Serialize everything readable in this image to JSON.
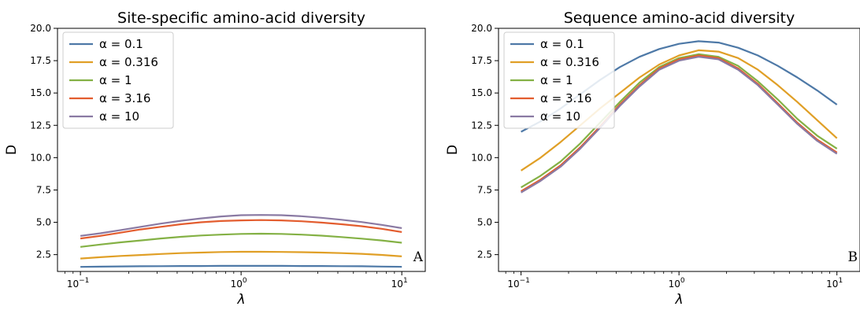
{
  "chart_data": [
    {
      "type": "line",
      "title": "Site-specific amino-acid diversity",
      "xlabel": "λ",
      "ylabel": "D",
      "xscale": "log",
      "xlim": [
        0.072,
        14
      ],
      "ylim": [
        1.2,
        20.0
      ],
      "x_ticks": [
        0.1,
        1,
        10
      ],
      "x_tick_labels": [
        {
          "base": "10",
          "exp": "−1"
        },
        {
          "base": "10",
          "exp": "0"
        },
        {
          "base": "10",
          "exp": "1"
        }
      ],
      "y_ticks": [
        "2.5",
        "5.0",
        "7.5",
        "10.0",
        "12.5",
        "15.0",
        "17.5",
        "20.0"
      ],
      "legend": "top-left",
      "grid": false,
      "panel_label": "A",
      "x": [
        0.1,
        0.133,
        0.178,
        0.237,
        0.316,
        0.422,
        0.562,
        0.75,
        1.0,
        1.33,
        1.78,
        2.37,
        3.16,
        4.22,
        5.62,
        7.5,
        10.0
      ],
      "series": [
        {
          "label": "α = 0.1",
          "alpha": "0.1",
          "color": "#4e79a7",
          "values": [
            1.55,
            1.57,
            1.59,
            1.6,
            1.61,
            1.62,
            1.62,
            1.63,
            1.63,
            1.63,
            1.63,
            1.62,
            1.62,
            1.61,
            1.6,
            1.58,
            1.56
          ]
        },
        {
          "label": "α = 0.316",
          "alpha": "0.316",
          "color": "#e09f26",
          "values": [
            2.2,
            2.3,
            2.4,
            2.47,
            2.55,
            2.62,
            2.66,
            2.7,
            2.72,
            2.72,
            2.71,
            2.69,
            2.66,
            2.62,
            2.56,
            2.48,
            2.37
          ]
        },
        {
          "label": "α = 1",
          "alpha": "1",
          "color": "#84b145",
          "values": [
            3.1,
            3.28,
            3.45,
            3.6,
            3.75,
            3.88,
            3.98,
            4.05,
            4.1,
            4.12,
            4.1,
            4.05,
            3.97,
            3.86,
            3.74,
            3.6,
            3.42
          ]
        },
        {
          "label": "α = 3.16",
          "alpha": "3.16",
          "color": "#e35d2f",
          "values": [
            3.75,
            3.95,
            4.2,
            4.45,
            4.65,
            4.85,
            5.0,
            5.1,
            5.15,
            5.17,
            5.15,
            5.08,
            4.98,
            4.85,
            4.7,
            4.5,
            4.25
          ]
        },
        {
          "label": "α = 10",
          "alpha": "10",
          "color": "#8a7aa3",
          "values": [
            3.95,
            4.15,
            4.4,
            4.65,
            4.9,
            5.12,
            5.3,
            5.45,
            5.55,
            5.57,
            5.55,
            5.47,
            5.35,
            5.2,
            5.02,
            4.8,
            4.55
          ]
        }
      ]
    },
    {
      "type": "line",
      "title": "Sequence amino-acid diversity",
      "xlabel": "λ",
      "ylabel": "D",
      "xscale": "log",
      "xlim": [
        0.072,
        14
      ],
      "ylim": [
        1.2,
        20.0
      ],
      "x_ticks": [
        0.1,
        1,
        10
      ],
      "x_tick_labels": [
        {
          "base": "10",
          "exp": "−1"
        },
        {
          "base": "10",
          "exp": "0"
        },
        {
          "base": "10",
          "exp": "1"
        }
      ],
      "y_ticks": [
        "2.5",
        "5.0",
        "7.5",
        "10.0",
        "12.5",
        "15.0",
        "17.5",
        "20.0"
      ],
      "legend": "top-left",
      "grid": false,
      "panel_label": "B",
      "x": [
        0.1,
        0.133,
        0.178,
        0.237,
        0.316,
        0.422,
        0.562,
        0.75,
        1.0,
        1.33,
        1.78,
        2.37,
        3.16,
        4.22,
        5.62,
        7.5,
        10.0
      ],
      "series": [
        {
          "label": "α = 0.1",
          "alpha": "0.1",
          "color": "#4e79a7",
          "values": [
            12.0,
            12.8,
            13.8,
            14.9,
            16.0,
            17.0,
            17.8,
            18.4,
            18.8,
            19.0,
            18.9,
            18.5,
            17.9,
            17.1,
            16.2,
            15.2,
            14.1
          ]
        },
        {
          "label": "α = 0.316",
          "alpha": "0.316",
          "color": "#e09f26",
          "values": [
            9.0,
            10.0,
            11.2,
            12.5,
            13.8,
            15.0,
            16.2,
            17.2,
            17.9,
            18.3,
            18.2,
            17.7,
            16.8,
            15.6,
            14.3,
            12.9,
            11.5
          ]
        },
        {
          "label": "α = 1",
          "alpha": "1",
          "color": "#84b145",
          "values": [
            7.7,
            8.6,
            9.7,
            11.1,
            12.7,
            14.3,
            15.8,
            17.0,
            17.7,
            18.0,
            17.8,
            17.1,
            15.9,
            14.5,
            13.0,
            11.7,
            10.7
          ]
        },
        {
          "label": "α = 3.16",
          "alpha": "3.16",
          "color": "#e35d2f",
          "values": [
            7.4,
            8.3,
            9.4,
            10.8,
            12.4,
            14.1,
            15.6,
            16.9,
            17.6,
            17.9,
            17.7,
            16.9,
            15.7,
            14.2,
            12.7,
            11.4,
            10.4
          ]
        },
        {
          "label": "α = 10",
          "alpha": "10",
          "color": "#8a7aa3",
          "values": [
            7.3,
            8.2,
            9.3,
            10.7,
            12.3,
            14.0,
            15.5,
            16.8,
            17.5,
            17.8,
            17.6,
            16.8,
            15.6,
            14.1,
            12.6,
            11.3,
            10.3
          ]
        }
      ]
    }
  ]
}
